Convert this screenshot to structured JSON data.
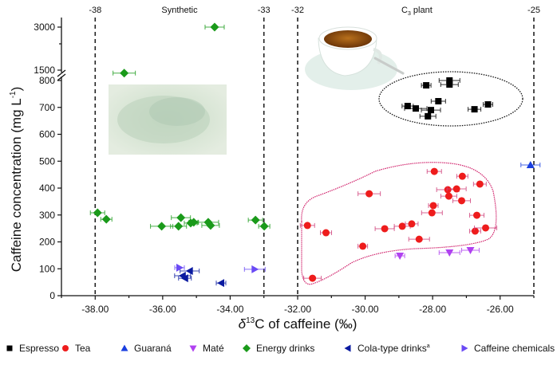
{
  "chart_data": {
    "type": "scatter",
    "title": "",
    "xlabel": "δ13C of caffeine (‰)",
    "xlabel_parts": {
      "delta": "δ",
      "sup": "13",
      "rest": "C  of caffeine (‰)"
    },
    "ylabel": "Caffeine concentration (mg L-1)",
    "ylabel_parts": {
      "main": "Caffeine concentration (mg L",
      "sup": "-1",
      "close": ")"
    },
    "xlim": [
      -39,
      -25
    ],
    "ylim_lower": [
      0,
      800
    ],
    "ylim_upper": [
      800,
      3000
    ],
    "y_axis_break": true,
    "x_ticks": [
      -38,
      -36,
      -34,
      -32,
      -30,
      -28,
      -26
    ],
    "x_tick_labels": [
      "-38.00",
      "-36.00",
      "-34.00",
      "-32.00",
      "-30.00",
      "-28.00",
      "-26.00"
    ],
    "y_ticks_lower": [
      0,
      100,
      200,
      300,
      400,
      500,
      600,
      700,
      800
    ],
    "y_tick_labels_lower": [
      "0",
      "100",
      "200",
      "300",
      "400",
      "500",
      "600",
      "700",
      "800"
    ],
    "y_ticks_upper": [
      1500,
      3000
    ],
    "y_tick_labels_upper": [
      "1500",
      "3000"
    ],
    "reference_lines": [
      {
        "x": -38,
        "label": "-38"
      },
      {
        "x": -33,
        "label": "-33"
      },
      {
        "x": -32,
        "label": "-32"
      },
      {
        "x": -25,
        "label": "-25"
      }
    ],
    "region_labels": [
      {
        "text": "Synthetic",
        "x": -35.5
      },
      {
        "text": "C3 plant",
        "main": "C",
        "sub": "3",
        "rest": " plant",
        "x": -28.5
      }
    ],
    "legend_position": "bottom",
    "series": [
      {
        "name": "Espresso",
        "marker": "square",
        "color": "#000000",
        "points": [
          {
            "x": -28.19,
            "y": 782
          },
          {
            "x": -27.5,
            "y": 803
          },
          {
            "x": -27.5,
            "y": 785
          },
          {
            "x": -27.83,
            "y": 723
          },
          {
            "x": -28.74,
            "y": 705
          },
          {
            "x": -28.5,
            "y": 696
          },
          {
            "x": -28.05,
            "y": 690
          },
          {
            "x": -28.14,
            "y": 667
          },
          {
            "x": -26.76,
            "y": 693
          },
          {
            "x": -26.36,
            "y": 711
          }
        ]
      },
      {
        "name": "Tea",
        "marker": "circle",
        "color": "#ee1c1c",
        "points": [
          {
            "x": -31.71,
            "y": 261
          },
          {
            "x": -31.16,
            "y": 234
          },
          {
            "x": -29.88,
            "y": 379
          },
          {
            "x": -29.42,
            "y": 249
          },
          {
            "x": -28.9,
            "y": 258
          },
          {
            "x": -28.62,
            "y": 267
          },
          {
            "x": -30.07,
            "y": 184
          },
          {
            "x": -28.4,
            "y": 210
          },
          {
            "x": -31.56,
            "y": 65
          },
          {
            "x": -27.95,
            "y": 462
          },
          {
            "x": -27.12,
            "y": 444
          },
          {
            "x": -27.55,
            "y": 394
          },
          {
            "x": -27.29,
            "y": 397
          },
          {
            "x": -27.52,
            "y": 370
          },
          {
            "x": -26.6,
            "y": 415
          },
          {
            "x": -27.98,
            "y": 335
          },
          {
            "x": -28.02,
            "y": 308
          },
          {
            "x": -27.14,
            "y": 353
          },
          {
            "x": -26.69,
            "y": 299
          },
          {
            "x": -26.74,
            "y": 240
          },
          {
            "x": -26.43,
            "y": 252
          }
        ]
      },
      {
        "name": "Guaraná",
        "marker": "triangle-up",
        "color": "#1a3fe0",
        "points": [
          {
            "x": -25.1,
            "y": 486
          }
        ]
      },
      {
        "name": "Maté",
        "marker": "triangle-down",
        "color": "#b042f0",
        "points": [
          {
            "x": -28.97,
            "y": 148
          },
          {
            "x": -27.5,
            "y": 160
          },
          {
            "x": -26.88,
            "y": 169
          }
        ]
      },
      {
        "name": "Energy drinks",
        "marker": "diamond",
        "color": "#1a9a1a",
        "points": [
          {
            "x": -37.93,
            "y": 308
          },
          {
            "x": -37.67,
            "y": 284
          },
          {
            "x": -36.03,
            "y": 258
          },
          {
            "x": -35.46,
            "y": 290
          },
          {
            "x": -35.53,
            "y": 258
          },
          {
            "x": -35.17,
            "y": 270
          },
          {
            "x": -35.08,
            "y": 273
          },
          {
            "x": -34.65,
            "y": 273
          },
          {
            "x": -34.58,
            "y": 261
          },
          {
            "x": -33.25,
            "y": 281
          },
          {
            "x": -32.99,
            "y": 258
          },
          {
            "x": -37.14,
            "y": 1300
          },
          {
            "x": -34.46,
            "y": 3000
          }
        ]
      },
      {
        "name": "Cola-type drinks",
        "name_sup": "a",
        "marker": "triangle-left",
        "color": "#0a1aa0",
        "points": [
          {
            "x": -35.2,
            "y": 92
          },
          {
            "x": -35.41,
            "y": 74
          },
          {
            "x": -35.34,
            "y": 65
          },
          {
            "x": -34.27,
            "y": 47
          }
        ]
      },
      {
        "name": "Caffeine chemicals",
        "marker": "triangle-right",
        "color": "#6a4af5",
        "points": [
          {
            "x": -35.5,
            "y": 104
          },
          {
            "x": -33.27,
            "y": 98
          }
        ]
      }
    ],
    "annotations": [
      {
        "type": "ellipse",
        "encloses": "Espresso",
        "style": "dotted",
        "color": "#111111"
      },
      {
        "type": "outline",
        "encloses": "Tea",
        "style": "dotted",
        "color": "#d0206a"
      },
      {
        "type": "image",
        "depicts": "synthetic caffeine powder"
      },
      {
        "type": "image",
        "depicts": "espresso cup"
      }
    ]
  }
}
